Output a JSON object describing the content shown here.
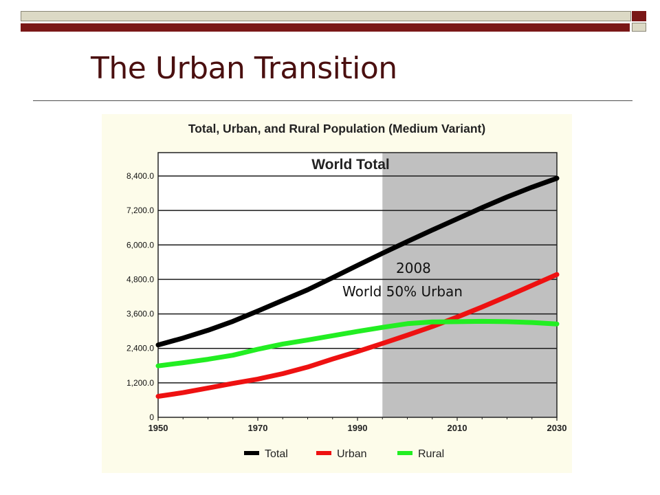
{
  "slide": {
    "title": "The Urban Transition",
    "accent_color": "#7a1717",
    "band_color": "#dcd9c5"
  },
  "chart_data": {
    "type": "line",
    "title": "Total, Urban, and Rural Population (Medium Variant)",
    "subtitle": "World Total",
    "xlabel": "",
    "ylabel": "",
    "x": [
      1950,
      1955,
      1960,
      1965,
      1970,
      1975,
      1980,
      1985,
      1990,
      1995,
      2000,
      2005,
      2010,
      2015,
      2020,
      2025,
      2030
    ],
    "xlim": [
      1950,
      2030
    ],
    "ylim": [
      0,
      8400
    ],
    "yticks": [
      0,
      1200,
      2400,
      3600,
      4800,
      6000,
      7200,
      8400
    ],
    "ytick_labels": [
      "0",
      "1,200.0",
      "2,400.0",
      "3,600.0",
      "4,800.0",
      "6,000.0",
      "7,200.0",
      "8,400.0"
    ],
    "xticks": [
      1950,
      1970,
      1990,
      2010,
      2030
    ],
    "xtick_labels": [
      "1950",
      "1970",
      "1990",
      "2010",
      "2030"
    ],
    "projection_shading_from": 1995,
    "grid": true,
    "legend_position": "bottom",
    "series": [
      {
        "name": "Total",
        "color": "#000000",
        "values": [
          2520,
          2760,
          3030,
          3340,
          3700,
          4070,
          4440,
          4860,
          5290,
          5710,
          6120,
          6520,
          6910,
          7300,
          7670,
          8010,
          8320
        ]
      },
      {
        "name": "Urban",
        "color": "#ee1111",
        "values": [
          730,
          860,
          1020,
          1180,
          1330,
          1520,
          1750,
          2030,
          2290,
          2570,
          2860,
          3160,
          3490,
          3840,
          4210,
          4590,
          4970
        ]
      },
      {
        "name": "Rural",
        "color": "#22ee22",
        "values": [
          1790,
          1900,
          2020,
          2160,
          2370,
          2550,
          2690,
          2840,
          2990,
          3130,
          3260,
          3320,
          3330,
          3340,
          3330,
          3300,
          3250
        ]
      }
    ],
    "annotations": [
      {
        "line1": "2008",
        "line2": "World 50% Urban"
      }
    ]
  }
}
